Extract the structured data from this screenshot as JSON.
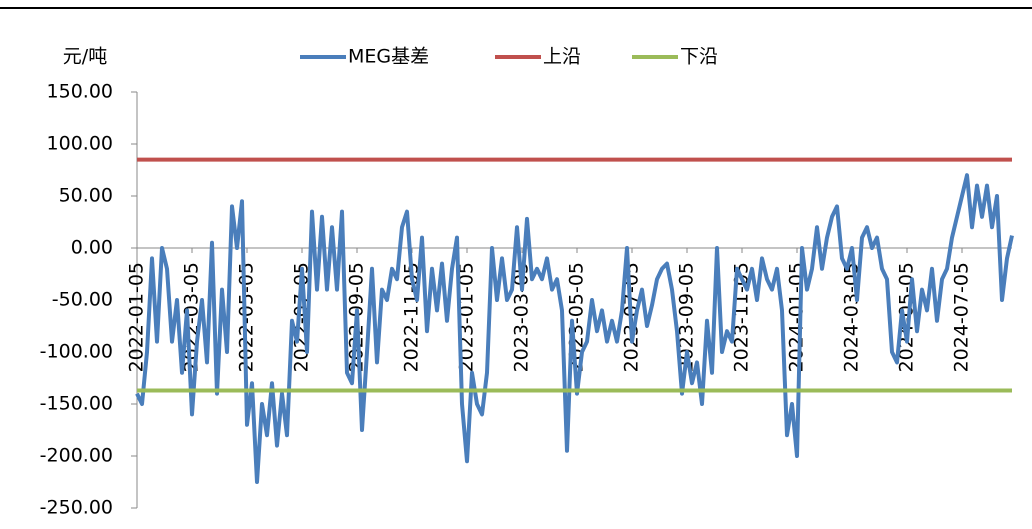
{
  "chart_data": {
    "type": "line",
    "y_label": "元/吨",
    "categories": [
      "2022-01-05",
      null,
      null,
      null,
      null,
      null,
      null,
      null,
      null,
      null,
      null,
      "2022-03-05",
      null,
      null,
      null,
      null,
      null,
      null,
      null,
      null,
      null,
      null,
      "2022-05-05",
      null,
      null,
      null,
      null,
      null,
      null,
      null,
      null,
      null,
      null,
      "2022-07-05",
      null,
      null,
      null,
      null,
      null,
      null,
      null,
      null,
      null,
      null,
      "2022-09-05",
      null,
      null,
      null,
      null,
      null,
      null,
      null,
      null,
      null,
      null,
      "2022-11-05",
      null,
      null,
      null,
      null,
      null,
      null,
      null,
      null,
      null,
      null,
      "2023-01-05",
      null,
      null,
      null,
      null,
      null,
      null,
      null,
      null,
      null,
      null,
      "2023-03-05",
      null,
      null,
      null,
      null,
      null,
      null,
      null,
      null,
      null,
      null,
      "2023-05-05",
      null,
      null,
      null,
      null,
      null,
      null,
      null,
      null,
      null,
      null,
      "2023-07-05",
      null,
      null,
      null,
      null,
      null,
      null,
      null,
      null,
      null,
      null,
      "2023-09-05",
      null,
      null,
      null,
      null,
      null,
      null,
      null,
      null,
      null,
      null,
      "2023-11-05",
      null,
      null,
      null,
      null,
      null,
      null,
      null,
      null,
      null,
      null,
      "2024-01-05",
      null,
      null,
      null,
      null,
      null,
      null,
      null,
      null,
      null,
      null,
      "2024-03-05",
      null,
      null,
      null,
      null,
      null,
      null,
      null,
      null,
      null,
      null,
      "2024-05-05",
      null,
      null,
      null,
      null,
      null,
      null,
      null,
      null,
      null,
      null,
      "2024-07-05",
      null,
      null,
      null,
      null,
      null,
      null,
      null,
      null,
      null,
      null
    ],
    "series": [
      {
        "name": "MEG基差",
        "color": "#4a7ebb",
        "values": [
          -140,
          -150,
          -100,
          -10,
          -90,
          0,
          -20,
          -90,
          -50,
          -120,
          -60,
          -160,
          -90,
          -50,
          -110,
          5,
          -140,
          -40,
          -100,
          40,
          0,
          45,
          -170,
          -130,
          -225,
          -150,
          -180,
          -130,
          -190,
          -140,
          -180,
          -70,
          -90,
          -20,
          -100,
          35,
          -40,
          30,
          -40,
          20,
          -40,
          35,
          -120,
          -130,
          -60,
          -175,
          -100,
          -20,
          -110,
          -40,
          -50,
          -20,
          -30,
          20,
          35,
          -30,
          -50,
          10,
          -80,
          -20,
          -60,
          -15,
          -70,
          -20,
          10,
          -150,
          -205,
          -120,
          -150,
          -160,
          -120,
          0,
          -50,
          -10,
          -50,
          -40,
          20,
          -40,
          28,
          -30,
          -20,
          -30,
          -10,
          -40,
          -30,
          -60,
          -195,
          -70,
          -140,
          -100,
          -90,
          -50,
          -80,
          -60,
          -90,
          -70,
          -90,
          -60,
          0,
          -90,
          -60,
          -40,
          -75,
          -55,
          -30,
          -20,
          -15,
          -40,
          -80,
          -140,
          -100,
          -130,
          -110,
          -150,
          -70,
          -120,
          0,
          -100,
          -80,
          -90,
          -20,
          -30,
          -40,
          -20,
          -50,
          -10,
          -30,
          -40,
          -20,
          -60,
          -180,
          -150,
          -200,
          0,
          -40,
          -20,
          20,
          -20,
          10,
          30,
          40,
          -10,
          -20,
          0,
          -50,
          10,
          20,
          0,
          10,
          -20,
          -30,
          -100,
          -110,
          -60,
          -90,
          -30,
          -80,
          -40,
          -60,
          -20,
          -70,
          -30,
          -20,
          10,
          30,
          50,
          70,
          20,
          60,
          30,
          60,
          20,
          50,
          -50,
          -10,
          12
        ]
      },
      {
        "name": "上沿",
        "color": "#c0504d",
        "value": 85
      },
      {
        "name": "下沿",
        "color": "#9bbb59",
        "value": -137
      }
    ],
    "ylim": [
      -250,
      150
    ],
    "yticks": [
      {
        "value": -250,
        "label": "-250.00"
      },
      {
        "value": -200,
        "label": "-200.00"
      },
      {
        "value": -150,
        "label": "-150.00"
      },
      {
        "value": -100,
        "label": "-100.00"
      },
      {
        "value": -50,
        "label": "-50.00"
      },
      {
        "value": 0,
        "label": "0.00"
      },
      {
        "value": 50,
        "label": "50.00"
      },
      {
        "value": 100,
        "label": "100.00"
      },
      {
        "value": 150,
        "label": "150.00"
      }
    ],
    "legend": "top"
  }
}
